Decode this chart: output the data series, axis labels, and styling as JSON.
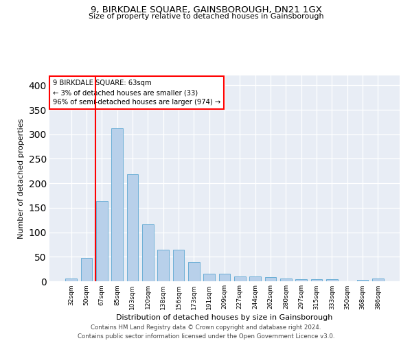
{
  "title": "9, BIRKDALE SQUARE, GAINSBOROUGH, DN21 1GX",
  "subtitle": "Size of property relative to detached houses in Gainsborough",
  "xlabel": "Distribution of detached houses by size in Gainsborough",
  "ylabel": "Number of detached properties",
  "categories": [
    "32sqm",
    "50sqm",
    "67sqm",
    "85sqm",
    "103sqm",
    "120sqm",
    "138sqm",
    "156sqm",
    "173sqm",
    "191sqm",
    "209sqm",
    "227sqm",
    "244sqm",
    "262sqm",
    "280sqm",
    "297sqm",
    "315sqm",
    "333sqm",
    "350sqm",
    "368sqm",
    "386sqm"
  ],
  "values": [
    5,
    47,
    164,
    312,
    219,
    116,
    65,
    65,
    39,
    16,
    15,
    10,
    10,
    8,
    5,
    4,
    4,
    4,
    0,
    3,
    5
  ],
  "bar_color": "#b8d0ea",
  "bar_edge_color": "#6baed6",
  "vline_color": "red",
  "vline_x": 1.575,
  "annotation_text": "9 BIRKDALE SQUARE: 63sqm\n← 3% of detached houses are smaller (33)\n96% of semi-detached houses are larger (974) →",
  "annotation_box_color": "white",
  "annotation_box_edge": "red",
  "ylim": [
    0,
    420
  ],
  "yticks": [
    0,
    50,
    100,
    150,
    200,
    250,
    300,
    350,
    400
  ],
  "background_color": "#e8edf5",
  "footer_line1": "Contains HM Land Registry data © Crown copyright and database right 2024.",
  "footer_line2": "Contains public sector information licensed under the Open Government Licence v3.0."
}
